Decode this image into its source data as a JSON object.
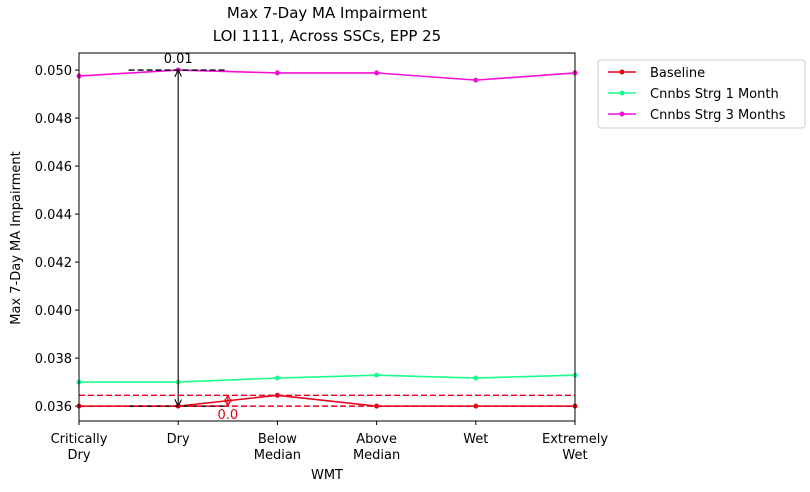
{
  "chart_data": {
    "type": "line",
    "title": "Max 7-Day MA Impairment",
    "subtitle": "LOI 1111, Across SSCs, EPP 25",
    "x_label": "WMT",
    "y_label": "Max 7-Day MA Impairment",
    "categories": [
      "Critically Dry",
      "Dry",
      "Below Median",
      "Above Median",
      "Wet",
      "Extremely Wet"
    ],
    "series": [
      {
        "name": "Baseline",
        "color": "#e6001a",
        "values": [
          0.036,
          0.036,
          0.03645,
          0.036,
          0.036,
          0.036
        ]
      },
      {
        "name": "Cnnbs Strg 1 Month",
        "color": "#1aff8c",
        "values": [
          0.037,
          0.037,
          0.03717,
          0.03729,
          0.03717,
          0.03729
        ]
      },
      {
        "name": "Cnnbs Strg 3 Months",
        "color": "#f50fd8",
        "values": [
          0.04975,
          0.05,
          0.04988,
          0.04988,
          0.04958,
          0.04988
        ]
      }
    ],
    "ylim": [
      0.03538,
      0.05071
    ],
    "yticks": [
      {
        "value": 0.036,
        "label": "0.036"
      },
      {
        "value": 0.038,
        "label": "0.038"
      },
      {
        "value": 0.04,
        "label": "0.040"
      },
      {
        "value": 0.042,
        "label": "0.042"
      },
      {
        "value": 0.044,
        "label": "0.044"
      },
      {
        "value": 0.046,
        "label": "0.046"
      },
      {
        "value": 0.048,
        "label": "0.048"
      },
      {
        "value": 0.05,
        "label": "0.050"
      }
    ],
    "annotations": [
      {
        "text": "0.01",
        "x": 1,
        "y1": 0.036,
        "y2": 0.05,
        "color": "#000000",
        "hline_x": [
          0.5,
          1.5
        ]
      },
      {
        "text": "0.0",
        "x": 1.5,
        "y1": 0.036,
        "y2": 0.03645,
        "color": "#e6001a",
        "hline_x": [
          0,
          5
        ]
      }
    ],
    "legend": "outside upper right",
    "grid": false
  }
}
